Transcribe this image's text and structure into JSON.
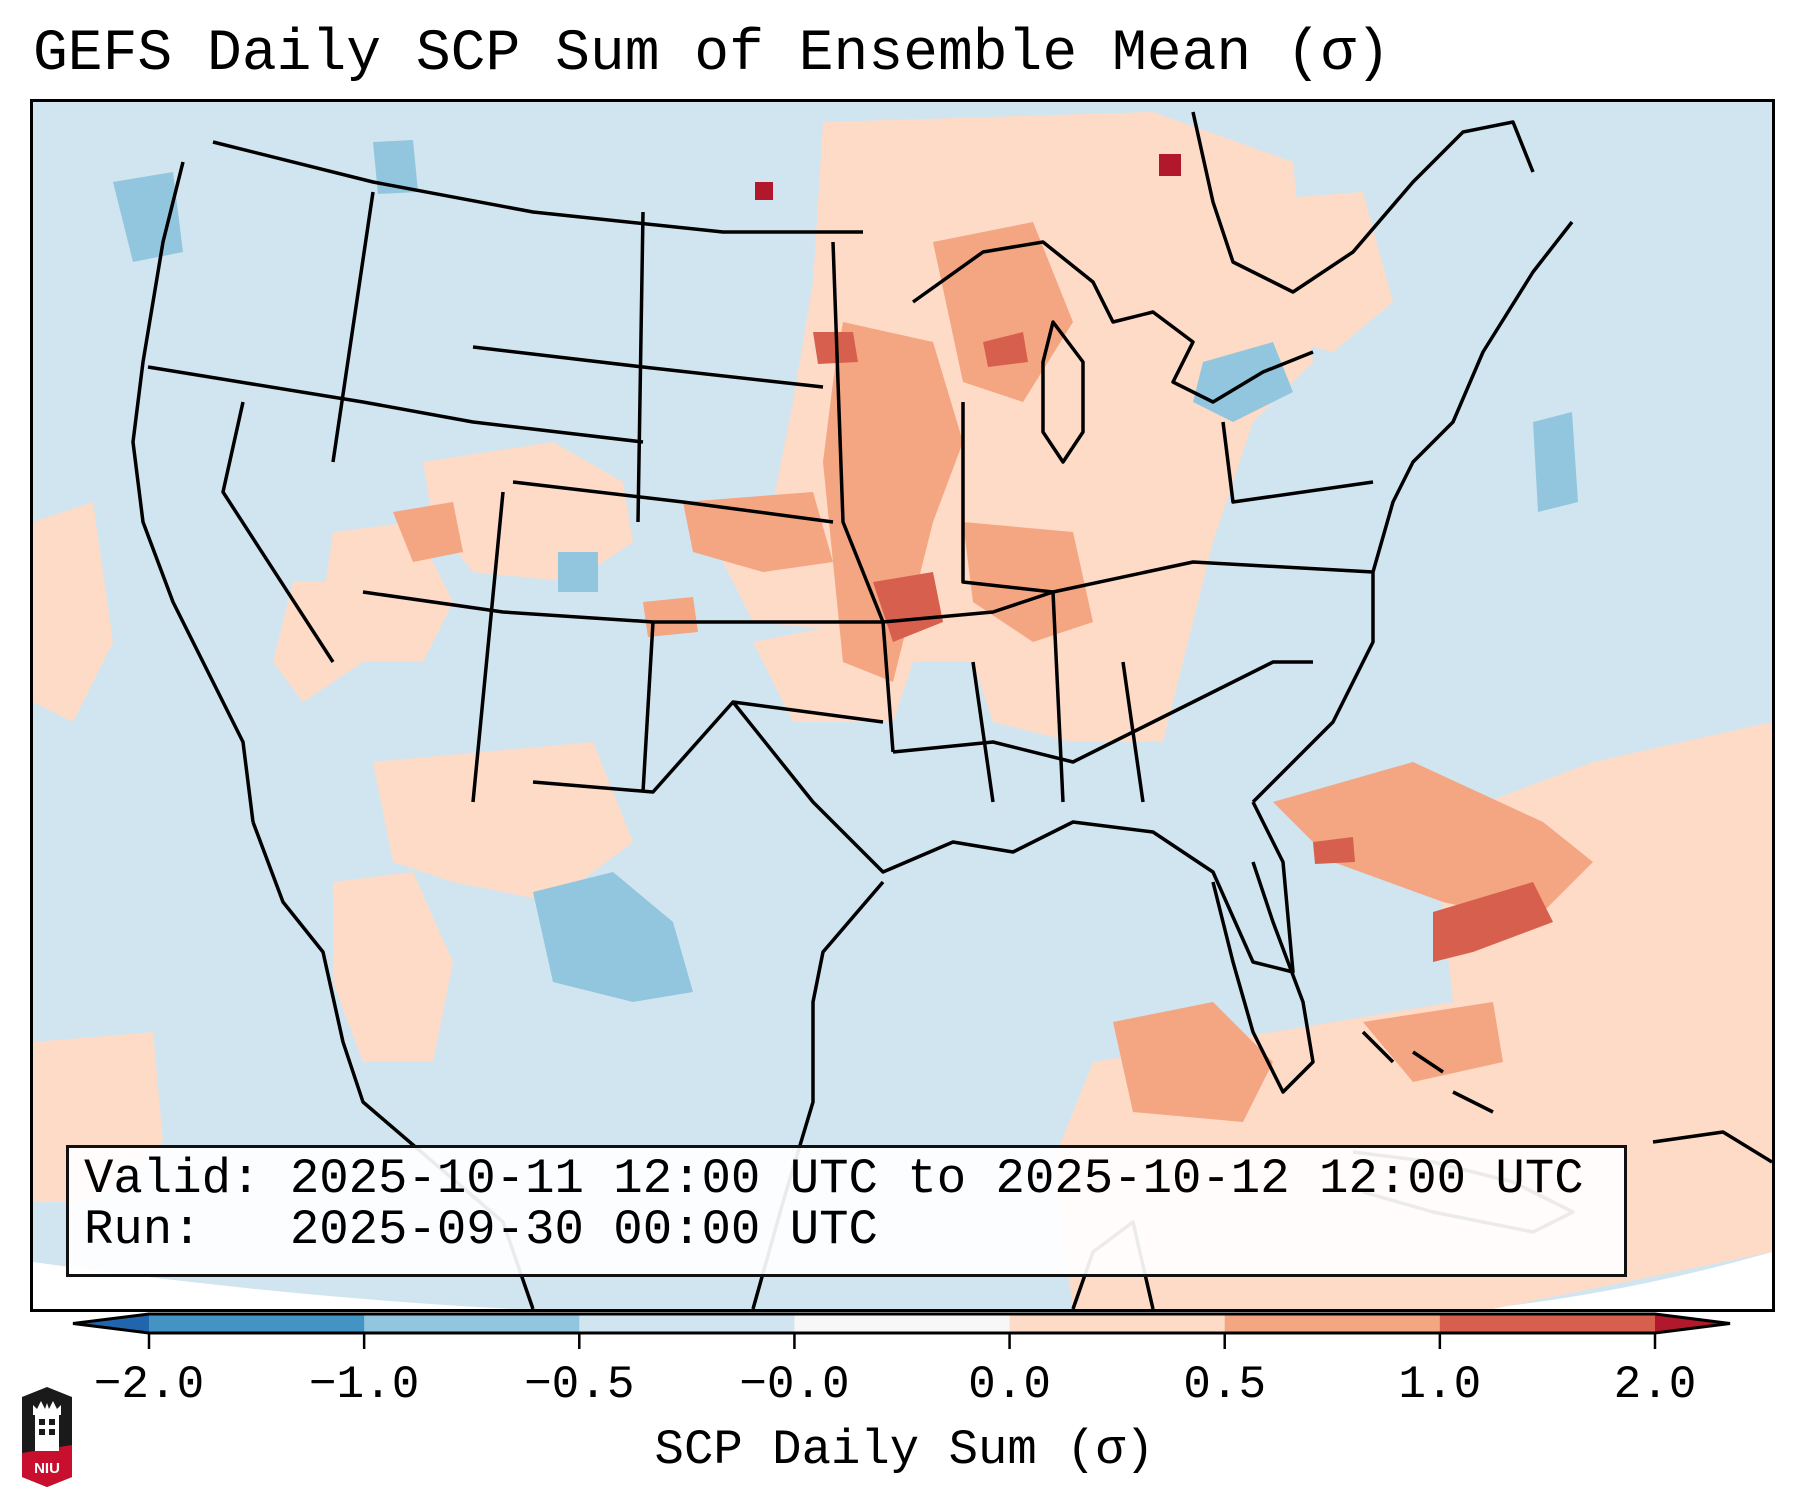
{
  "title": "GEFS Daily SCP Sum of Ensemble Mean (σ)",
  "info_box": {
    "valid_line": "Valid: 2025-10-11 12:00 UTC to 2025-10-12 12:00 UTC",
    "run_line": "Run:   2025-09-30 00:00 UTC"
  },
  "colorbar": {
    "label": "SCP Daily Sum (σ)",
    "ticks": [
      "−2.0",
      "−1.0",
      "−0.5",
      "−0.0",
      "0.0",
      "0.5",
      "1.0",
      "2.0"
    ],
    "bins": [
      {
        "range": "< -2.0",
        "color": "#2166ac"
      },
      {
        "range": "-2.0 to -1.0",
        "color": "#4393c3"
      },
      {
        "range": "-1.0 to -0.5",
        "color": "#92c5de"
      },
      {
        "range": "-0.5 to -0.0",
        "color": "#d1e5f0"
      },
      {
        "range": "-0.0 to 0.0",
        "color": "#f7f7f7"
      },
      {
        "range": "0.0 to 0.5",
        "color": "#fddbc7"
      },
      {
        "range": "0.5 to 1.0",
        "color": "#f4a582"
      },
      {
        "range": "1.0 to 2.0",
        "color": "#d6604d"
      },
      {
        "range": "> 2.0",
        "color": "#b2182b"
      }
    ],
    "extend": "both"
  },
  "map": {
    "projection_region": "CONUS",
    "background_color": "#d1e5f0",
    "border_color": "#000000",
    "anomaly_regions": [
      {
        "name": "Upper Midwest / Minnesota",
        "level": "0.5 to 1.0"
      },
      {
        "name": "Iowa / Missouri",
        "level": "1.0 to 2.0"
      },
      {
        "name": "Western Atlantic off Southeast US",
        "level": "1.0 to 2.0"
      },
      {
        "name": "Gulf of Mexico south",
        "level": "0.5 to 1.0"
      },
      {
        "name": "Ontario isolated cell",
        "level": "> 2.0"
      },
      {
        "name": "North Dakota isolated cell",
        "level": "> 2.0"
      },
      {
        "name": "South Texas / northern Mexico",
        "level": "-1.0 to -0.5"
      },
      {
        "name": "Lake Ontario / Lake Erie",
        "level": "-1.0 to -0.5"
      }
    ]
  },
  "logo": {
    "text": "NIU",
    "icon": "niu-logo-icon"
  }
}
